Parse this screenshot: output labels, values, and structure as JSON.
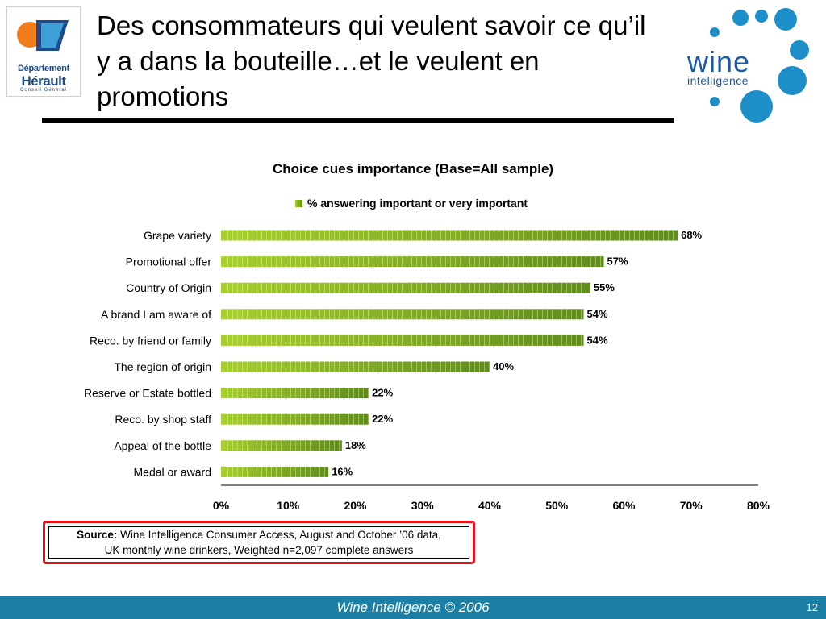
{
  "slide": {
    "title": "Des consommateurs qui veulent savoir ce qu’il y a dans la bouteille…et le veulent en promotions",
    "logo_left": {
      "line1": "Département",
      "line2": "Hérault",
      "line3": "Conseil Général"
    },
    "logo_right": {
      "word": "wine",
      "sub": "intelligence"
    },
    "source_label": "Source:",
    "source_text_1": "Wine Intelligence Consumer Access, August and October ’06 data,",
    "source_text_2": "UK monthly wine drinkers, Weighted n=2,097 complete answers",
    "footer": "Wine Intelligence © 2006",
    "page_number": "12",
    "colors": {
      "accent": "#1c7fa5",
      "bar_light": "#a6d21f",
      "bar_dark": "#5e8f12",
      "source_border": "#e1151b",
      "logo_blue": "#1a5aa8"
    }
  },
  "chart_data": {
    "type": "bar",
    "orientation": "horizontal",
    "title": "Choice cues importance (Base=All sample)",
    "categories": [
      "Grape variety",
      "Promotional offer",
      "Country of Origin",
      "A brand I am aware of",
      "Reco. by friend or family",
      "The region of origin",
      "Reserve or Estate bottled",
      "Reco. by shop staff",
      "Appeal of the bottle",
      "Medal or award"
    ],
    "series": [
      {
        "name": "% answering important or very important",
        "values": [
          68,
          57,
          55,
          54,
          54,
          40,
          22,
          22,
          18,
          16
        ]
      }
    ],
    "data_labels": [
      "68%",
      "57%",
      "55%",
      "54%",
      "54%",
      "40%",
      "22%",
      "22%",
      "18%",
      "16%"
    ],
    "xlim": [
      0,
      80
    ],
    "ticks": [
      "0%",
      "10%",
      "20%",
      "30%",
      "40%",
      "50%",
      "60%",
      "70%",
      "80%"
    ],
    "legend_position": "top",
    "grid": false
  }
}
